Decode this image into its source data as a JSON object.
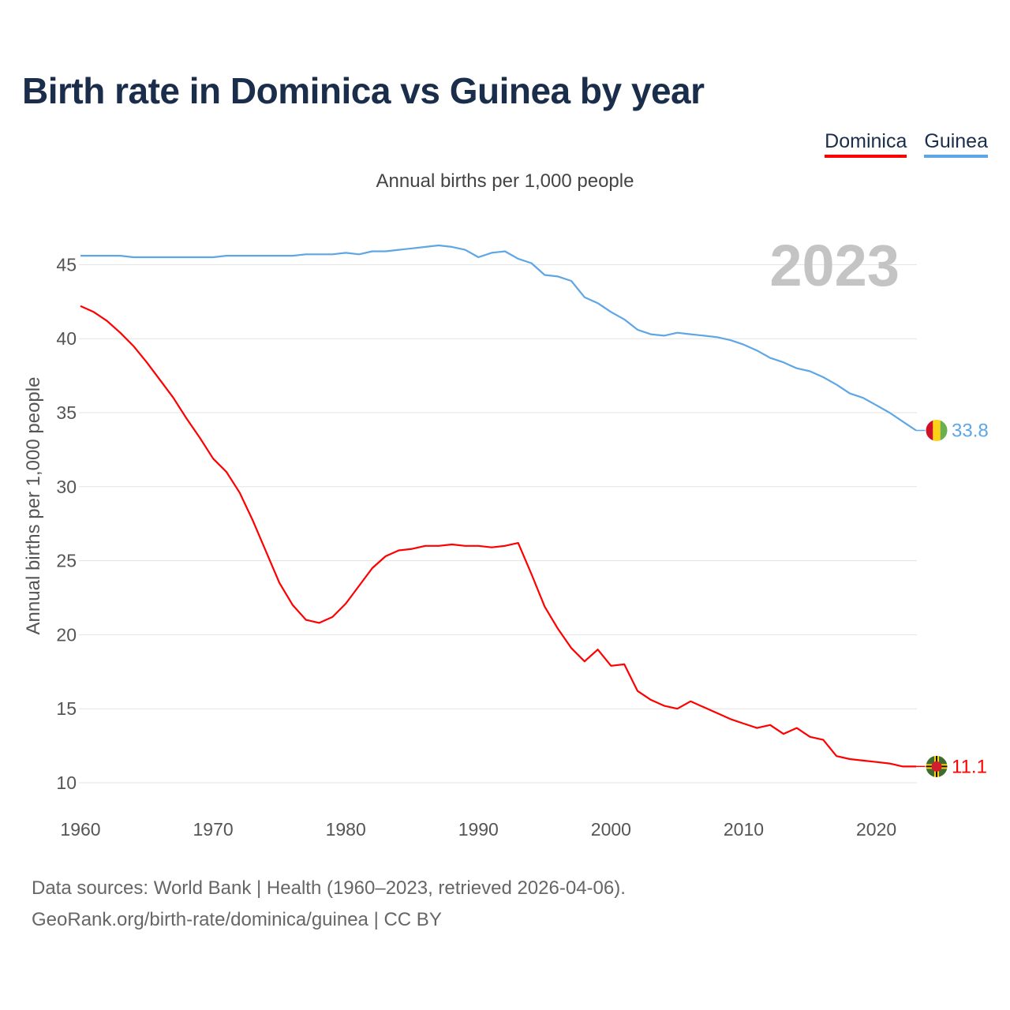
{
  "header": {
    "title": "Birth rate in Dominica vs Guinea by year",
    "subtitle": "Annual births per 1,000 people"
  },
  "legend": {
    "dominica": "Dominica",
    "guinea": "Guinea"
  },
  "footer": {
    "source_line1": "Data sources: World Bank | Health (1960–2023, retrieved 2026-04-06).",
    "source_line2": "GeoRank.org/birth-rate/dominica/guinea | CC BY"
  },
  "colors": {
    "dominica": "#ff0000",
    "guinea": "#5ea6e6",
    "title": "#1a2e4c",
    "year_watermark": "#c4c4c4"
  },
  "chart_data": {
    "type": "line",
    "title": "Birth rate in Dominica vs Guinea by year",
    "ylabel": "Annual births per 1,000 people",
    "xlabel": "",
    "xlim": [
      1960,
      2023
    ],
    "ylim": [
      10,
      47
    ],
    "x_ticks": [
      1960,
      1970,
      1980,
      1990,
      2000,
      2010,
      2020
    ],
    "y_ticks": [
      10,
      15,
      20,
      25,
      30,
      35,
      40,
      45
    ],
    "year_label": "2023",
    "x": [
      1960,
      1961,
      1962,
      1963,
      1964,
      1965,
      1966,
      1967,
      1968,
      1969,
      1970,
      1971,
      1972,
      1973,
      1974,
      1975,
      1976,
      1977,
      1978,
      1979,
      1980,
      1981,
      1982,
      1983,
      1984,
      1985,
      1986,
      1987,
      1988,
      1989,
      1990,
      1991,
      1992,
      1993,
      1994,
      1995,
      1996,
      1997,
      1998,
      1999,
      2000,
      2001,
      2002,
      2003,
      2004,
      2005,
      2006,
      2007,
      2008,
      2009,
      2010,
      2011,
      2012,
      2013,
      2014,
      2015,
      2016,
      2017,
      2018,
      2019,
      2020,
      2021,
      2022,
      2023
    ],
    "series": [
      {
        "name": "Dominica",
        "color": "#ff0000",
        "end_label": "11.1",
        "values": [
          42.2,
          41.8,
          41.2,
          40.4,
          39.5,
          38.4,
          37.2,
          36.0,
          34.6,
          33.3,
          31.9,
          31.0,
          29.6,
          27.7,
          25.6,
          23.5,
          22.0,
          21.0,
          20.8,
          21.2,
          22.1,
          23.3,
          24.5,
          25.3,
          25.7,
          25.8,
          26.0,
          26.0,
          26.1,
          26.0,
          26.0,
          25.9,
          26.0,
          26.2,
          24.1,
          21.9,
          20.4,
          19.1,
          18.2,
          19.0,
          17.9,
          18.0,
          16.2,
          15.6,
          15.2,
          15.0,
          15.5,
          15.1,
          14.7,
          14.3,
          14.0,
          13.7,
          13.9,
          13.3,
          13.7,
          13.1,
          12.9,
          11.8,
          11.6,
          11.5,
          11.4,
          11.3,
          11.1,
          11.1
        ]
      },
      {
        "name": "Guinea",
        "color": "#5ea6e6",
        "end_label": "33.8",
        "values": [
          45.6,
          45.6,
          45.6,
          45.6,
          45.5,
          45.5,
          45.5,
          45.5,
          45.5,
          45.5,
          45.5,
          45.6,
          45.6,
          45.6,
          45.6,
          45.6,
          45.6,
          45.7,
          45.7,
          45.7,
          45.8,
          45.7,
          45.9,
          45.9,
          46.0,
          46.1,
          46.2,
          46.3,
          46.2,
          46.0,
          45.5,
          45.8,
          45.9,
          45.4,
          45.1,
          44.3,
          44.2,
          43.9,
          42.8,
          42.4,
          41.8,
          41.3,
          40.6,
          40.3,
          40.2,
          40.4,
          40.3,
          40.2,
          40.1,
          39.9,
          39.6,
          39.2,
          38.7,
          38.4,
          38.0,
          37.8,
          37.4,
          36.9,
          36.3,
          36.0,
          35.5,
          35.0,
          34.4,
          33.8
        ]
      }
    ]
  }
}
